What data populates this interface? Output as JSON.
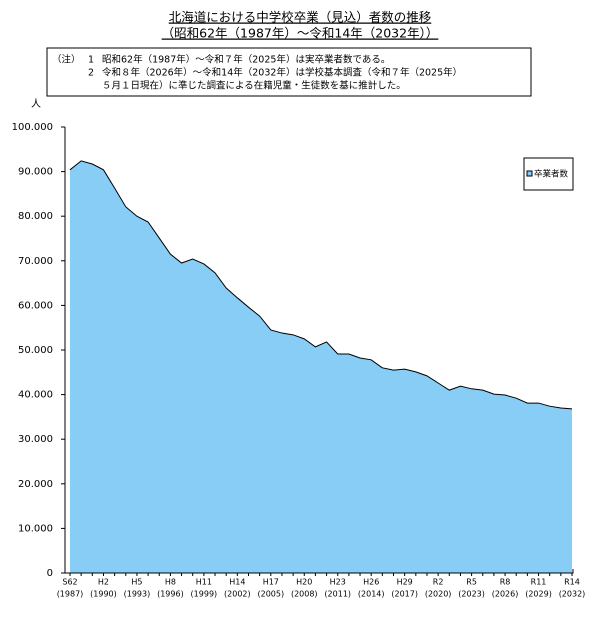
{
  "chart_data": {
    "type": "area",
    "title": "北海道における中学校卒業（見込）者数の推移",
    "subtitle": "（昭和62年（1987年）～令和14年（2032年））",
    "notes": {
      "heading": "（注）",
      "items": [
        {
          "number": "1",
          "lines": [
            "昭和62年（1987年）～令和７年（2025年）は実卒業者数である。"
          ]
        },
        {
          "number": "2",
          "lines": [
            "令和８年（2026年）～令和14年（2032年）は学校基本調査（令和７年（2025年）",
            "５月１日現在）に準じた調査による在籍児童・生徒数を基に推計した。"
          ]
        }
      ]
    },
    "y_label": "人",
    "categories": [
      "S62",
      null,
      null,
      "H2",
      null,
      null,
      "H5",
      null,
      null,
      "H8",
      null,
      null,
      "H11",
      null,
      null,
      "H14",
      null,
      null,
      "H17",
      null,
      null,
      "H20",
      null,
      null,
      "H23",
      null,
      null,
      "H26",
      null,
      null,
      "H29",
      null,
      null,
      "R2",
      null,
      null,
      "R5",
      null,
      null,
      "R8",
      null,
      null,
      "R11",
      null,
      null,
      "R14"
    ],
    "category_sublabels": [
      "(1987)",
      null,
      null,
      "(1990)",
      null,
      null,
      "(1993)",
      null,
      null,
      "(1996)",
      null,
      null,
      "(1999)",
      null,
      null,
      "(2002)",
      null,
      null,
      "(2005)",
      null,
      null,
      "(2008)",
      null,
      null,
      "(2011)",
      null,
      null,
      "(2014)",
      null,
      null,
      "(2017)",
      null,
      null,
      "(2020)",
      null,
      null,
      "(2023)",
      null,
      null,
      "(2026)",
      null,
      null,
      "(2029)",
      null,
      null,
      "(2032)"
    ],
    "series": [
      {
        "name": "卒業者数",
        "color": "#88cdf6",
        "values": [
          90400,
          92400,
          91700,
          90400,
          86300,
          82100,
          80000,
          78700,
          75100,
          71500,
          69500,
          70400,
          69300,
          67300,
          63900,
          61700,
          59600,
          57600,
          54500,
          53800,
          53400,
          52500,
          50700,
          51800,
          49100,
          49100,
          48200,
          47800,
          46000,
          45500,
          45700,
          45100,
          44200,
          42600,
          41000,
          41900,
          41300,
          41000,
          40100,
          39900,
          39200,
          38100,
          38100,
          37400,
          37000,
          36800
        ]
      }
    ],
    "ylim": [
      0,
      100000
    ],
    "yticks": [
      0,
      {
        "value": 10000,
        "label": "10.000"
      },
      {
        "value": 20000,
        "label": "20.000"
      },
      {
        "value": 30000,
        "label": "30.000"
      },
      {
        "value": 40000,
        "label": "40.000"
      },
      {
        "value": 50000,
        "label": "50.000"
      },
      {
        "value": 60000,
        "label": "60.000"
      },
      {
        "value": 70000,
        "label": "70.000"
      },
      {
        "value": 80000,
        "label": "80.000"
      },
      {
        "value": 90000,
        "label": "90.000"
      },
      {
        "value": 100000,
        "label": "100.000"
      }
    ],
    "legend": "right",
    "grid": false
  }
}
